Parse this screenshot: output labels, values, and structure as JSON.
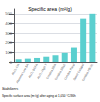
{
  "chart_data": {
    "type": "bar",
    "title": "Specific area (m²/g)",
    "categories": [
      "Al₂O₃ CR",
      "Alumina Low SA",
      "Al₂O₃ SCFA",
      "Al₂O₃ High T",
      "Condea SBA",
      "Condea SBa2",
      "Condea Pural",
      "Sasol Catapal",
      "Condea HS-30"
    ],
    "values": [
      28,
      35,
      42,
      55,
      70,
      95,
      150,
      450,
      500
    ],
    "color": "#5BCFCF",
    "ylim": [
      0,
      550
    ],
    "yticks": [
      0,
      100,
      200,
      300,
      400,
      500
    ],
    "grid": true,
    "annotations": [
      "Stabilizers",
      "Specific surface area (m²/g) after aging at 1,050 °C/36h"
    ]
  }
}
